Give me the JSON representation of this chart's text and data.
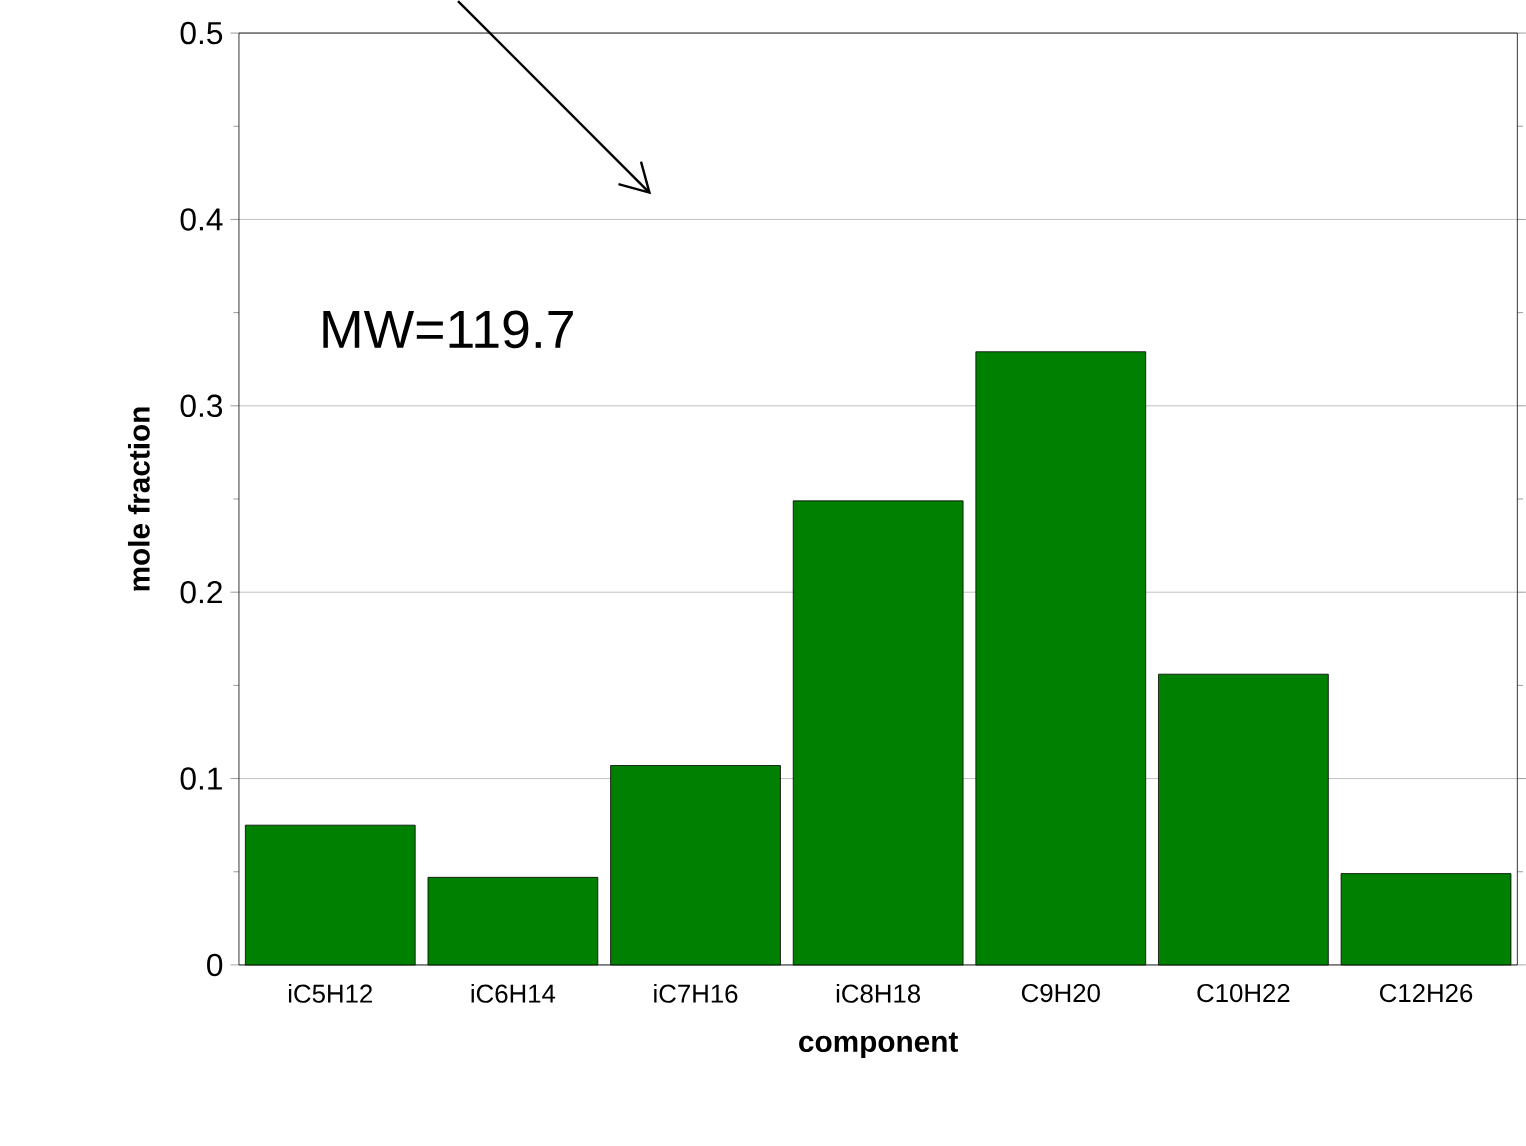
{
  "chart_data": {
    "type": "bar",
    "xlabel": "component",
    "ylabel": "mole fraction",
    "categories": [
      "iC5H12",
      "iC6H14",
      "iC7H16",
      "iC8H18",
      "C9H20",
      "C10H22",
      "C12H26"
    ],
    "values": [
      0.075,
      0.047,
      0.107,
      0.249,
      0.329,
      0.156,
      0.049
    ],
    "color": "#008000",
    "ylim": [
      0,
      0.5
    ],
    "yticks": [
      0,
      0.1,
      0.2,
      0.3,
      0.4,
      0.5
    ],
    "grid": "y",
    "annotations": [
      "MW=119.7"
    ]
  }
}
